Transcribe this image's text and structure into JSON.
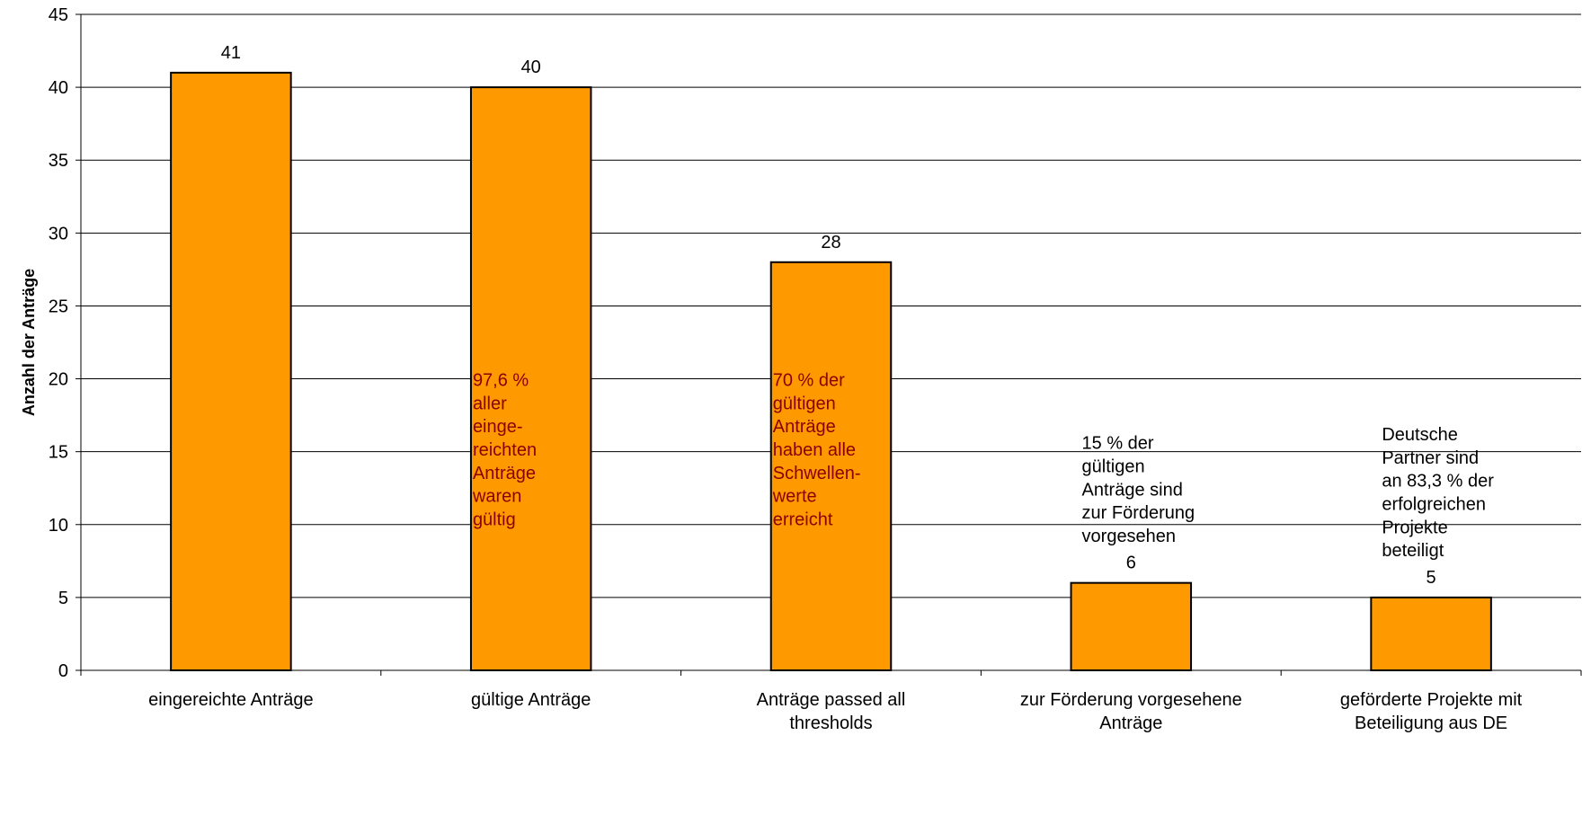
{
  "chart_data": {
    "type": "bar",
    "ylabel": "Anzahl der Anträge",
    "ylim": [
      0,
      45
    ],
    "yticks": [
      0,
      5,
      10,
      15,
      20,
      25,
      30,
      35,
      40,
      45
    ],
    "grid": true,
    "categories": [
      [
        "eingereichte Anträge"
      ],
      [
        "gültige Anträge"
      ],
      [
        "Anträge passed all",
        "thresholds"
      ],
      [
        "zur Förderung vorgesehene",
        "Anträge"
      ],
      [
        "geförderte Projekte mit",
        "Beteiligung aus DE"
      ]
    ],
    "values": [
      41,
      40,
      28,
      6,
      5
    ],
    "data_labels": [
      "41",
      "40",
      "28",
      "6",
      "5"
    ],
    "annotations": [
      {
        "bar": 1,
        "placement": "inside",
        "lines": [
          "97,6 %",
          "aller",
          "einge-",
          "reichten",
          "Anträge",
          "waren",
          "gültig"
        ]
      },
      {
        "bar": 2,
        "placement": "inside",
        "lines": [
          "70 % der",
          "gültigen",
          "Anträge",
          "haben alle",
          "Schwellen-",
          "werte",
          "erreicht"
        ]
      },
      {
        "bar": 3,
        "placement": "above",
        "lines": [
          "15 % der",
          "gültigen",
          "Anträge sind",
          "zur Förderung",
          "vorgesehen"
        ]
      },
      {
        "bar": 4,
        "placement": "above",
        "lines": [
          "Deutsche",
          "Partner sind",
          "an 83,3 % der",
          "erfolgreichen",
          "Projekte",
          "beteiligt"
        ]
      }
    ],
    "colors": {
      "bar_fill": "#FF9900",
      "bar_stroke": "#000000",
      "inside_text": "#8B0000",
      "outside_text": "#000000",
      "grid": "#000000"
    }
  }
}
